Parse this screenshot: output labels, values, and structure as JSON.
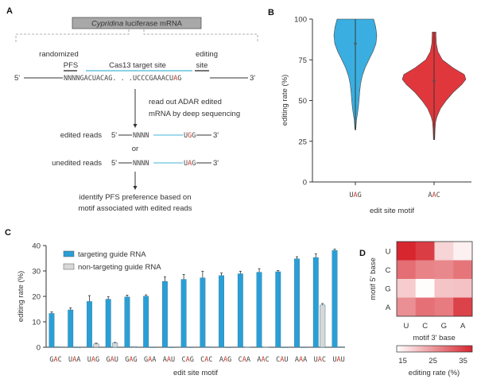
{
  "colors": {
    "bar_target": "#2a9fd6",
    "bar_nontarget": "#d8d8d8",
    "violin_uag": "#3aaee0",
    "violin_aac": "#e0373d",
    "target_line": "#45b6d8",
    "edit_base": "#c0392b",
    "heat_high": "#d7262e",
    "heat_low": "#ffffff"
  },
  "panel_a": {
    "label": "A",
    "mrna_box_italic": "Cypridina",
    "mrna_box_rest": " luciferase mRNA",
    "randomized": "randomized",
    "pfs": "PFS",
    "target_site": "Cas13 target site",
    "editing": "editing",
    "site": "site",
    "five_prime": "5'",
    "three_prime": "3'",
    "seq_prefix": "NNNNGACUACAG. . .UCCCGAAACU",
    "seq_edit": "A",
    "seq_suffix": "G",
    "step1_line1": "read out ADAR edited",
    "step1_line2": "mRNA by deep sequencing",
    "edited_label": "edited reads",
    "edited_n": "NNNN",
    "edited_u": "U",
    "edited_mid": "G",
    "edited_end": "G",
    "or": "or",
    "unedited_label": "unedited reads",
    "unedited_n": "NNNN",
    "unedited_u": "U",
    "unedited_mid": "A",
    "unedited_end": "G",
    "step2_line1": "identify PFS preference based on",
    "step2_line2": "motif associated with edited reads"
  },
  "chart_data": [
    {
      "panel": "B",
      "type": "violin",
      "ylabel": "editing rate (%)",
      "xlabel": "edit site motif",
      "ylim": [
        0,
        100
      ],
      "yticks": [
        "0",
        "25",
        "50",
        "75",
        "100"
      ],
      "categories": [
        {
          "pre": "U",
          "mid": "A",
          "post": "G",
          "min": 32,
          "max": 100,
          "median": 85,
          "density": [
            [
              32,
              0.02
            ],
            [
              38,
              0.05
            ],
            [
              42,
              0.1
            ],
            [
              46,
              0.14
            ],
            [
              50,
              0.17
            ],
            [
              55,
              0.2
            ],
            [
              60,
              0.24
            ],
            [
              65,
              0.32
            ],
            [
              70,
              0.45
            ],
            [
              75,
              0.63
            ],
            [
              80,
              0.82
            ],
            [
              85,
              0.96
            ],
            [
              90,
              1.0
            ],
            [
              95,
              0.95
            ],
            [
              100,
              0.85
            ]
          ]
        },
        {
          "pre": "A",
          "mid": "A",
          "post": "C",
          "min": 26,
          "max": 92,
          "median": 62,
          "density": [
            [
              26,
              0.02
            ],
            [
              32,
              0.03
            ],
            [
              37,
              0.05
            ],
            [
              40,
              0.09
            ],
            [
              45,
              0.2
            ],
            [
              50,
              0.38
            ],
            [
              55,
              0.6
            ],
            [
              60,
              0.88
            ],
            [
              63,
              1.0
            ],
            [
              66,
              0.95
            ],
            [
              70,
              0.6
            ],
            [
              75,
              0.26
            ],
            [
              80,
              0.12
            ],
            [
              85,
              0.07
            ],
            [
              90,
              0.06
            ],
            [
              92,
              0.06
            ]
          ]
        }
      ]
    },
    {
      "panel": "C",
      "type": "bar",
      "ylabel": "editing rate (%)",
      "xlabel": "edit site motif",
      "ylim": [
        0,
        40
      ],
      "yticks": [
        "0",
        "10",
        "20",
        "30",
        "40"
      ],
      "legend": "top-left",
      "categories": [
        {
          "pre": "G",
          "mid": "A",
          "post": "C"
        },
        {
          "pre": "U",
          "mid": "A",
          "post": "A"
        },
        {
          "pre": "U",
          "mid": "A",
          "post": "G"
        },
        {
          "pre": "G",
          "mid": "A",
          "post": "U"
        },
        {
          "pre": "G",
          "mid": "A",
          "post": "G"
        },
        {
          "pre": "G",
          "mid": "A",
          "post": "A"
        },
        {
          "pre": "A",
          "mid": "A",
          "post": "U"
        },
        {
          "pre": "C",
          "mid": "A",
          "post": "G"
        },
        {
          "pre": "C",
          "mid": "A",
          "post": "C"
        },
        {
          "pre": "A",
          "mid": "A",
          "post": "G"
        },
        {
          "pre": "C",
          "mid": "A",
          "post": "A"
        },
        {
          "pre": "A",
          "mid": "A",
          "post": "C"
        },
        {
          "pre": "C",
          "mid": "A",
          "post": "U"
        },
        {
          "pre": "A",
          "mid": "A",
          "post": "A"
        },
        {
          "pre": "U",
          "mid": "A",
          "post": "C"
        },
        {
          "pre": "U",
          "mid": "A",
          "post": "U"
        }
      ],
      "series": [
        {
          "name": "targeting guide RNA",
          "values": [
            13.3,
            14.7,
            18.0,
            18.9,
            19.8,
            20.1,
            25.9,
            26.7,
            27.3,
            28.2,
            28.9,
            29.5,
            29.7,
            34.8,
            35.3,
            38.1
          ],
          "errors": [
            0.6,
            0.8,
            2.3,
            1.0,
            0.7,
            0.5,
            1.8,
            1.9,
            2.6,
            1.0,
            1.0,
            1.4,
            0.5,
            0.8,
            1.4,
            0.5
          ]
        },
        {
          "name": "non-targeting guide RNA",
          "values": [
            0.2,
            0,
            1.3,
            1.7,
            0.3,
            0,
            0,
            0,
            0.2,
            0,
            0.1,
            0.1,
            0,
            0,
            16.6,
            0.2
          ],
          "errors": [
            0,
            0,
            0.3,
            0.2,
            0,
            0,
            0,
            0,
            0,
            0,
            0,
            0,
            0,
            0,
            0.6,
            0
          ]
        }
      ]
    },
    {
      "panel": "D",
      "type": "heatmap",
      "ylabel": "motif 5' base",
      "xlabel": "motif 3' base",
      "rows": [
        "U",
        "C",
        "G",
        "A"
      ],
      "cols": [
        "U",
        "C",
        "G",
        "A"
      ],
      "values": [
        [
          38.1,
          35.3,
          18.0,
          14.7
        ],
        [
          29.7,
          27.3,
          26.7,
          28.9
        ],
        [
          18.9,
          13.3,
          19.8,
          20.1
        ],
        [
          25.9,
          29.5,
          28.2,
          34.8
        ]
      ],
      "colorbar_label": "editing rate (%)",
      "colorbar_range": [
        13,
        38
      ],
      "colorbar_ticks": [
        "15",
        "25",
        "35"
      ]
    }
  ]
}
